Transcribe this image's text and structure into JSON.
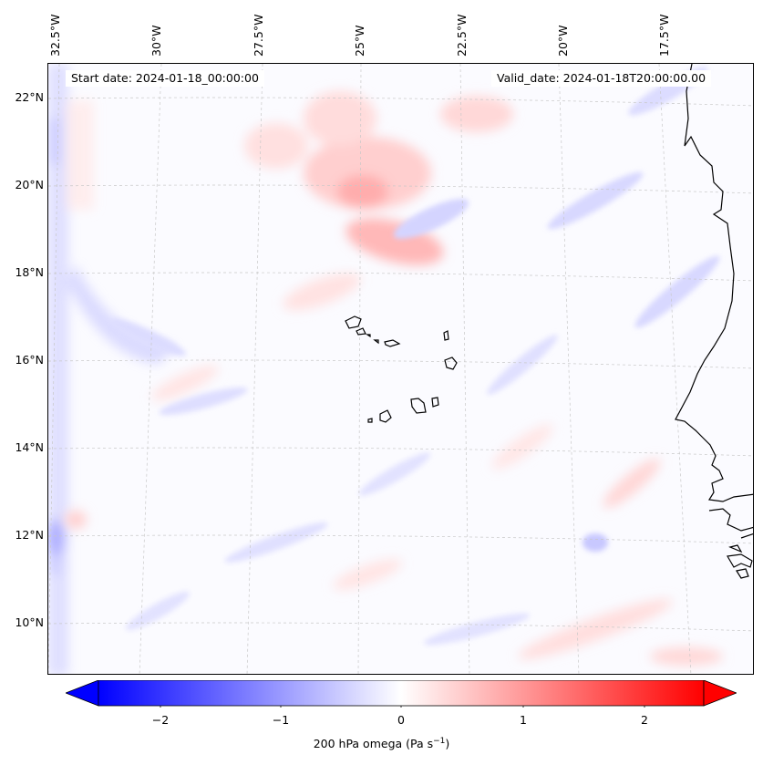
{
  "map": {
    "start_date": "Start date: 2024-01-18_00:00:00",
    "valid_date": "Valid_date: 2024-01-18T20:00:00.00",
    "lat_labels": [
      "22°N",
      "20°N",
      "18°N",
      "16°N",
      "14°N",
      "12°N",
      "10°N"
    ],
    "lon_labels": [
      "32.5°W",
      "30°W",
      "27.5°W",
      "25°W",
      "22.5°W",
      "20°W",
      "17.5°W"
    ],
    "lat_range": [
      8.8,
      22.8
    ],
    "lon_range": [
      -33.2,
      -16.2
    ],
    "variable": "200 hPa omega",
    "units": "Pa s⁻¹"
  },
  "colorbar": {
    "label_main": "200 hPa omega (Pa s",
    "label_sup": "−1",
    "label_end": ")",
    "ticks": [
      "−2",
      "−1",
      "0",
      "1",
      "2"
    ],
    "tick_values": [
      -2,
      -1,
      0,
      1,
      2
    ],
    "range": [
      -2.5,
      2.5
    ],
    "colormap": "bwr",
    "min_color": "#0000ff",
    "mid_color": "#ffffff",
    "max_color": "#ff0000",
    "extend": "both"
  },
  "colors": {
    "coastline": "#000000",
    "gridline": "#c8c8c8",
    "positive": "#ff0000",
    "negative": "#0000ff"
  }
}
